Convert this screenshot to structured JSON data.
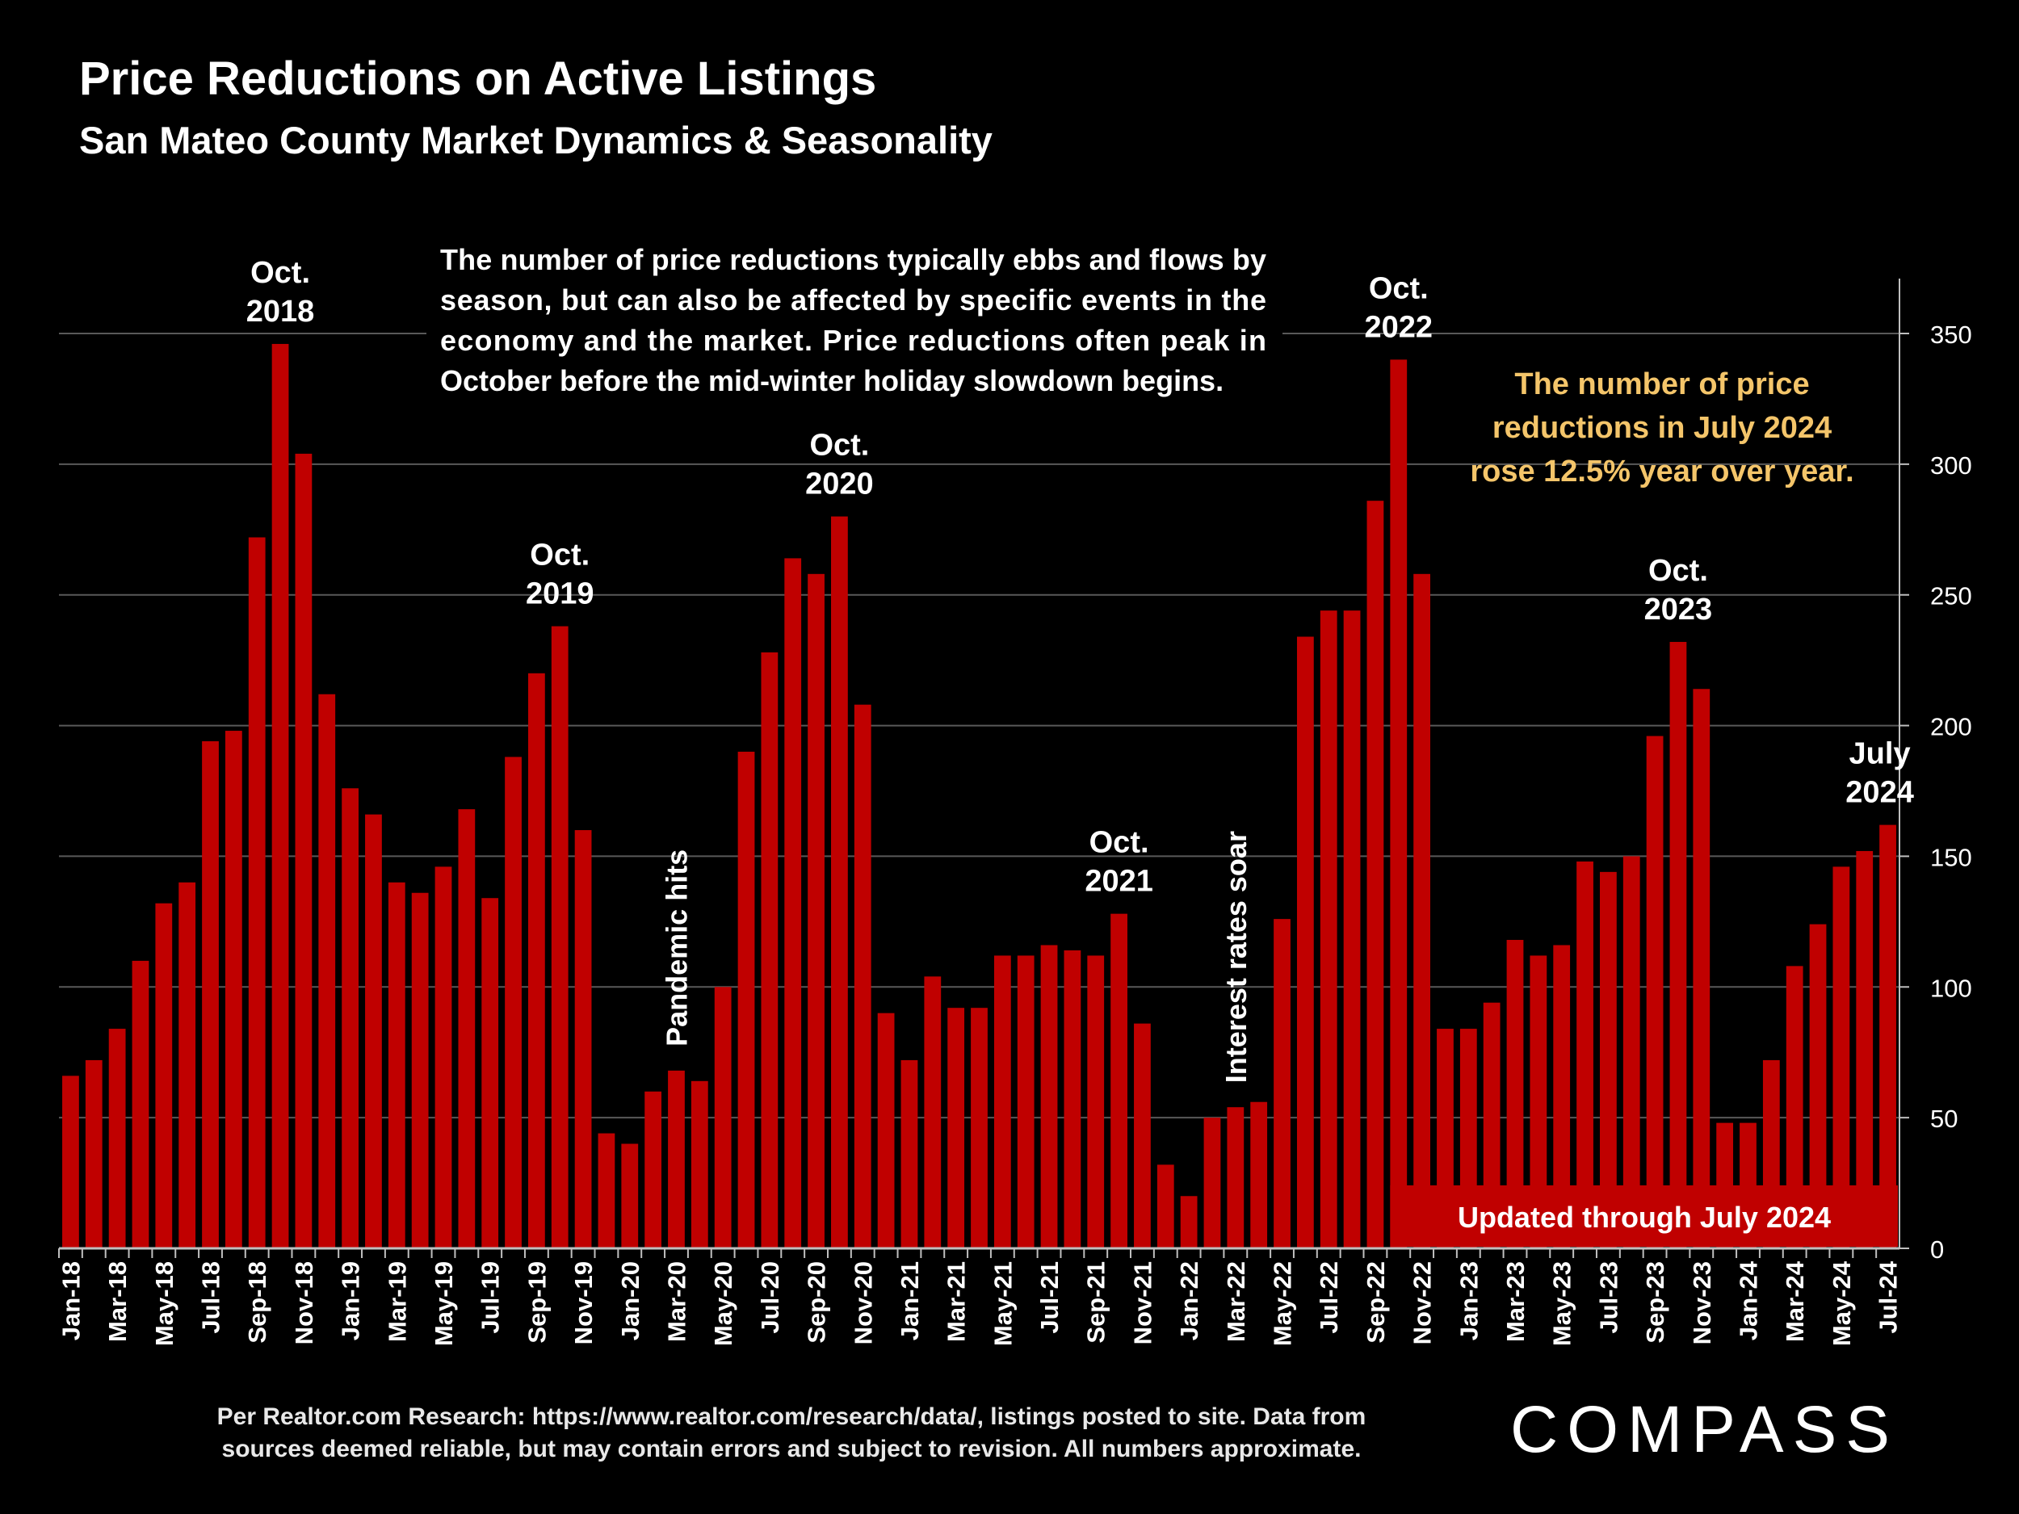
{
  "header": {
    "title": "Price Reductions on Active Listings",
    "subtitle": "San Mateo County Market Dynamics & Seasonality"
  },
  "footnote": {
    "line1": "Per Realtor.com Research:  https://www.realtor.com/research/data/, listings posted to site. Data from",
    "line2": "sources deemed reliable, but may contain errors and subject to revision. All numbers approximate."
  },
  "logo": {
    "text": "COMPASS"
  },
  "colors": {
    "bar": "#c00000",
    "background": "#000000",
    "callout": "#f4c56a",
    "grid": "#595959"
  },
  "chart_data": {
    "type": "bar",
    "title": "Price Reductions on Active Listings",
    "subtitle": "San Mateo County Market Dynamics & Seasonality",
    "ylim": [
      0,
      370
    ],
    "yticks": [
      0,
      50,
      100,
      150,
      200,
      250,
      300,
      350
    ],
    "y_axis_side": "right",
    "grid": true,
    "categories": [
      "Jan-18",
      "Feb-18",
      "Mar-18",
      "Apr-18",
      "May-18",
      "Jun-18",
      "Jul-18",
      "Aug-18",
      "Sep-18",
      "Oct-18",
      "Nov-18",
      "Dec-18",
      "Jan-19",
      "Feb-19",
      "Mar-19",
      "Apr-19",
      "May-19",
      "Jun-19",
      "Jul-19",
      "Aug-19",
      "Sep-19",
      "Oct-19",
      "Nov-19",
      "Dec-19",
      "Jan-20",
      "Feb-20",
      "Mar-20",
      "Apr-20",
      "May-20",
      "Jun-20",
      "Jul-20",
      "Aug-20",
      "Sep-20",
      "Oct-20",
      "Nov-20",
      "Dec-20",
      "Jan-21",
      "Feb-21",
      "Mar-21",
      "Apr-21",
      "May-21",
      "Jun-21",
      "Jul-21",
      "Aug-21",
      "Sep-21",
      "Oct-21",
      "Nov-21",
      "Dec-21",
      "Jan-22",
      "Feb-22",
      "Mar-22",
      "Apr-22",
      "May-22",
      "Jun-22",
      "Jul-22",
      "Aug-22",
      "Sep-22",
      "Oct-22",
      "Nov-22",
      "Dec-22",
      "Jan-23",
      "Feb-23",
      "Mar-23",
      "Apr-23",
      "May-23",
      "Jun-23",
      "Jul-23",
      "Aug-23",
      "Sep-23",
      "Oct-23",
      "Nov-23",
      "Dec-23",
      "Jan-24",
      "Feb-24",
      "Mar-24",
      "Apr-24",
      "May-24",
      "Jun-24",
      "Jul-24"
    ],
    "xtick_labels": [
      "Jan-18",
      "",
      "Mar-18",
      "",
      "May-18",
      "",
      "Jul-18",
      "",
      "Sep-18",
      "",
      "Nov-18",
      "",
      "Jan-19",
      "",
      "Mar-19",
      "",
      "May-19",
      "",
      "Jul-19",
      "",
      "Sep-19",
      "",
      "Nov-19",
      "",
      "Jan-20",
      "",
      "Mar-20",
      "",
      "May-20",
      "",
      "Jul-20",
      "",
      "Sep-20",
      "",
      "Nov-20",
      "",
      "Jan-21",
      "",
      "Mar-21",
      "",
      "May-21",
      "",
      "Jul-21",
      "",
      "Sep-21",
      "",
      "Nov-21",
      "",
      "Jan-22",
      "",
      "Mar-22",
      "",
      "May-22",
      "",
      "Jul-22",
      "",
      "Sep-22",
      "",
      "Nov-22",
      "",
      "Jan-23",
      "",
      "Mar-23",
      "",
      "May-23",
      "",
      "Jul-23",
      "",
      "Sep-23",
      "",
      "Nov-23",
      "",
      "Jan-24",
      "",
      "Mar-24",
      "",
      "May-24",
      "",
      "Jul-24"
    ],
    "values": [
      66,
      72,
      84,
      110,
      132,
      140,
      194,
      198,
      272,
      346,
      304,
      212,
      176,
      166,
      140,
      136,
      146,
      168,
      134,
      188,
      220,
      238,
      160,
      44,
      40,
      60,
      68,
      64,
      100,
      190,
      228,
      264,
      258,
      280,
      208,
      90,
      72,
      104,
      92,
      92,
      112,
      112,
      116,
      114,
      112,
      128,
      86,
      32,
      20,
      50,
      54,
      56,
      126,
      234,
      244,
      244,
      286,
      340,
      258,
      84,
      84,
      94,
      118,
      112,
      116,
      148,
      144,
      150,
      196,
      232,
      214,
      48,
      48,
      72,
      108,
      124,
      146,
      152,
      162
    ],
    "annotations": [
      {
        "month": "Oct-18",
        "lines": [
          "Oct.",
          "2018"
        ]
      },
      {
        "month": "Oct-19",
        "lines": [
          "Oct.",
          "2019"
        ]
      },
      {
        "month": "Oct-20",
        "lines": [
          "Oct.",
          "2020"
        ]
      },
      {
        "month": "Oct-21",
        "lines": [
          "Oct.",
          "2021"
        ]
      },
      {
        "month": "Oct-22",
        "lines": [
          "Oct.",
          "2022"
        ]
      },
      {
        "month": "Oct-23",
        "lines": [
          "Oct.",
          "2023"
        ]
      },
      {
        "month": "Jul-24",
        "lines": [
          "July",
          "2024"
        ]
      }
    ],
    "vertical_annotations": [
      {
        "month": "Mar-20",
        "text": "Pandemic hits"
      },
      {
        "month": "Mar-22",
        "text": "Interest rates soar"
      }
    ],
    "text_box": [
      "The number of price reductions typically ebbs and flows by",
      "season, but can also be affected by specific events in the",
      "economy and the market. Price reductions often peak in",
      "October before the mid-winter holiday slowdown begins."
    ],
    "callout": [
      "The number of price",
      "reductions in July 2024",
      "rose 12.5% year over year."
    ],
    "banner": "Updated through July 2024"
  }
}
